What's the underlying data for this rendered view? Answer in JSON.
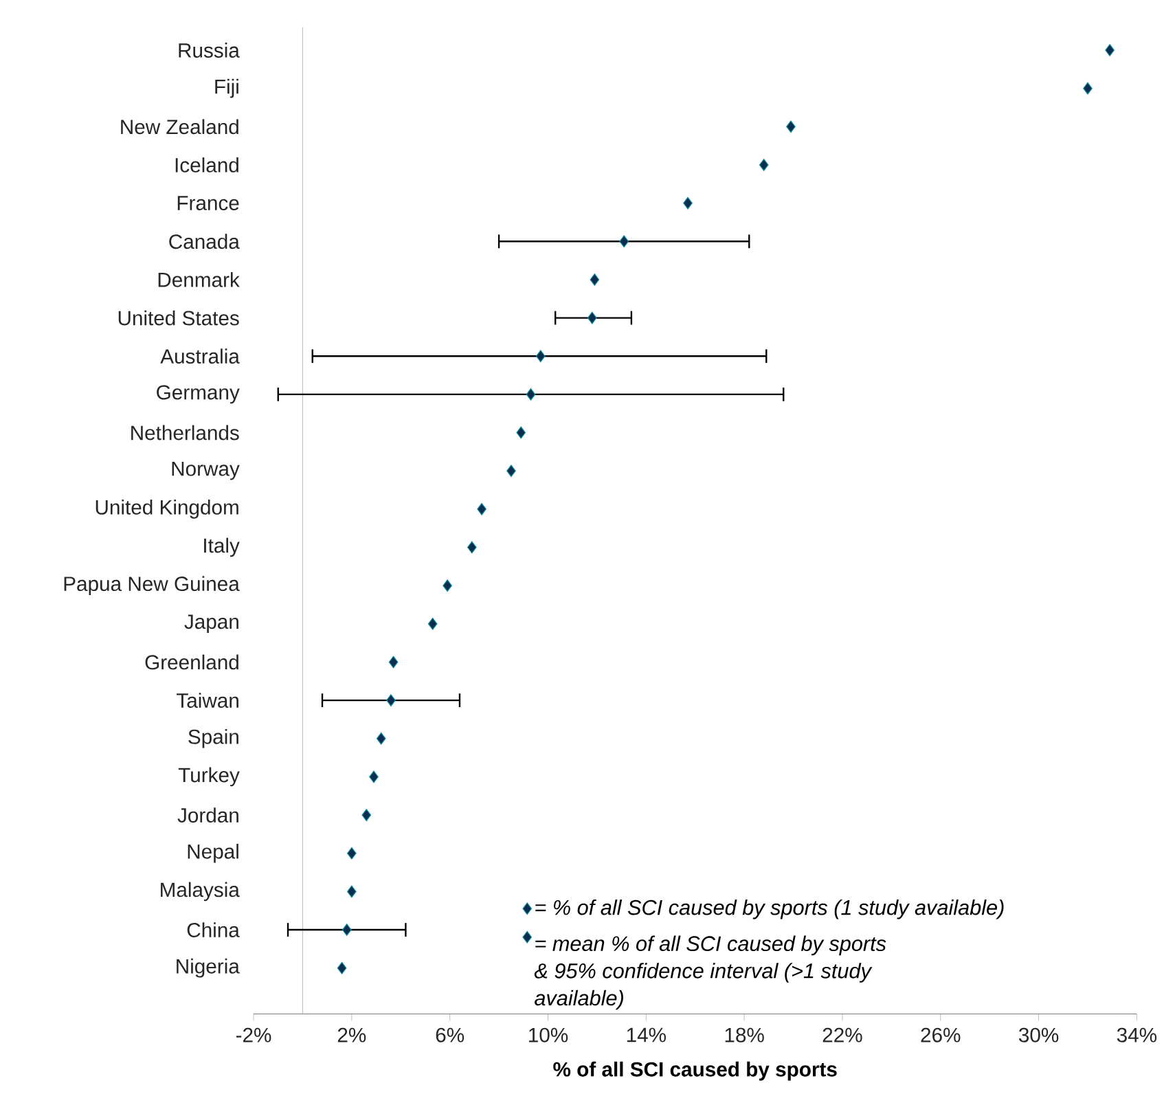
{
  "chart_data": {
    "type": "scatter",
    "orientation": "horizontal",
    "xlabel": "% of all SCI caused by sports",
    "categories": [
      "Russia",
      "Fiji",
      "New Zealand",
      "Iceland",
      "France",
      "Canada",
      "Denmark",
      "United States",
      "Australia",
      "Germany",
      "Netherlands",
      "Norway",
      "United Kingdom",
      "Italy",
      "Papua New Guinea",
      "Japan",
      "Greenland",
      "Taiwan",
      "Spain",
      "Turkey",
      "Jordan",
      "Nepal",
      "Malaysia",
      "China",
      "Nigeria"
    ],
    "series": [
      {
        "name": "= % of all SCI caused by sports (1 study available)",
        "color": "#0d2d4f",
        "values": [
          32.9,
          32.0,
          19.9,
          18.8,
          15.7,
          null,
          11.9,
          null,
          null,
          null,
          8.9,
          8.5,
          7.3,
          6.9,
          5.9,
          5.3,
          3.7,
          null,
          3.2,
          2.9,
          2.6,
          2.0,
          2.0,
          null,
          1.6
        ]
      },
      {
        "name": "= mean % of all SCI caused by sports & 95% confidence interval (>1 study available)",
        "color": "#0d2d4f",
        "values": [
          null,
          null,
          null,
          null,
          null,
          13.1,
          null,
          11.8,
          9.7,
          9.3,
          null,
          null,
          null,
          null,
          null,
          null,
          null,
          3.6,
          null,
          null,
          null,
          null,
          null,
          1.8,
          null
        ],
        "errors": [
          null,
          null,
          null,
          null,
          null,
          [
            8.0,
            18.2
          ],
          null,
          [
            10.3,
            13.4
          ],
          [
            0.4,
            18.9
          ],
          [
            -1.0,
            19.6
          ],
          null,
          null,
          null,
          null,
          null,
          null,
          null,
          [
            0.8,
            6.4
          ],
          null,
          null,
          null,
          null,
          null,
          [
            -0.6,
            4.2
          ],
          null
        ]
      }
    ],
    "xlim": [
      -2,
      34
    ],
    "xticks": [
      {
        "value": -2,
        "label": "-2%"
      },
      {
        "value": 2,
        "label": "2%"
      },
      {
        "value": 6,
        "label": "6%"
      },
      {
        "value": 10,
        "label": "10%"
      },
      {
        "value": 14,
        "label": "14%"
      },
      {
        "value": 18,
        "label": "18%"
      },
      {
        "value": 22,
        "label": "22%"
      },
      {
        "value": 26,
        "label": "26%"
      },
      {
        "value": 30,
        "label": "30%"
      },
      {
        "value": 34,
        "label": "34%"
      }
    ],
    "marker": "diamond",
    "legend": "bottom right"
  }
}
